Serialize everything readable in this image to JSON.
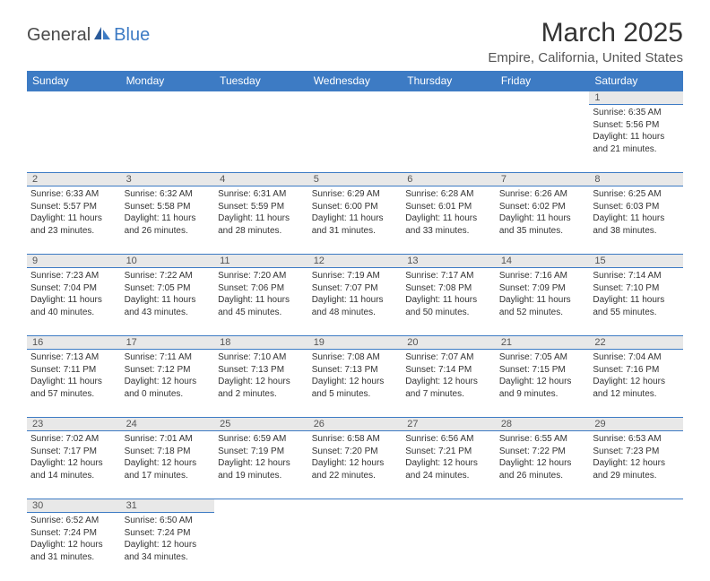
{
  "logo": {
    "general": "General",
    "blue": "Blue"
  },
  "title": "March 2025",
  "location": "Empire, California, United States",
  "header_bg": "#3d7bc4",
  "daynum_bg": "#e8e8e8",
  "border_color": "#3d7bc4",
  "days": [
    "Sunday",
    "Monday",
    "Tuesday",
    "Wednesday",
    "Thursday",
    "Friday",
    "Saturday"
  ],
  "weeks": [
    [
      null,
      null,
      null,
      null,
      null,
      null,
      {
        "n": "1",
        "sunrise": "6:35 AM",
        "sunset": "5:56 PM",
        "daylight": "11 hours and 21 minutes."
      }
    ],
    [
      {
        "n": "2",
        "sunrise": "6:33 AM",
        "sunset": "5:57 PM",
        "daylight": "11 hours and 23 minutes."
      },
      {
        "n": "3",
        "sunrise": "6:32 AM",
        "sunset": "5:58 PM",
        "daylight": "11 hours and 26 minutes."
      },
      {
        "n": "4",
        "sunrise": "6:31 AM",
        "sunset": "5:59 PM",
        "daylight": "11 hours and 28 minutes."
      },
      {
        "n": "5",
        "sunrise": "6:29 AM",
        "sunset": "6:00 PM",
        "daylight": "11 hours and 31 minutes."
      },
      {
        "n": "6",
        "sunrise": "6:28 AM",
        "sunset": "6:01 PM",
        "daylight": "11 hours and 33 minutes."
      },
      {
        "n": "7",
        "sunrise": "6:26 AM",
        "sunset": "6:02 PM",
        "daylight": "11 hours and 35 minutes."
      },
      {
        "n": "8",
        "sunrise": "6:25 AM",
        "sunset": "6:03 PM",
        "daylight": "11 hours and 38 minutes."
      }
    ],
    [
      {
        "n": "9",
        "sunrise": "7:23 AM",
        "sunset": "7:04 PM",
        "daylight": "11 hours and 40 minutes."
      },
      {
        "n": "10",
        "sunrise": "7:22 AM",
        "sunset": "7:05 PM",
        "daylight": "11 hours and 43 minutes."
      },
      {
        "n": "11",
        "sunrise": "7:20 AM",
        "sunset": "7:06 PM",
        "daylight": "11 hours and 45 minutes."
      },
      {
        "n": "12",
        "sunrise": "7:19 AM",
        "sunset": "7:07 PM",
        "daylight": "11 hours and 48 minutes."
      },
      {
        "n": "13",
        "sunrise": "7:17 AM",
        "sunset": "7:08 PM",
        "daylight": "11 hours and 50 minutes."
      },
      {
        "n": "14",
        "sunrise": "7:16 AM",
        "sunset": "7:09 PM",
        "daylight": "11 hours and 52 minutes."
      },
      {
        "n": "15",
        "sunrise": "7:14 AM",
        "sunset": "7:10 PM",
        "daylight": "11 hours and 55 minutes."
      }
    ],
    [
      {
        "n": "16",
        "sunrise": "7:13 AM",
        "sunset": "7:11 PM",
        "daylight": "11 hours and 57 minutes."
      },
      {
        "n": "17",
        "sunrise": "7:11 AM",
        "sunset": "7:12 PM",
        "daylight": "12 hours and 0 minutes."
      },
      {
        "n": "18",
        "sunrise": "7:10 AM",
        "sunset": "7:13 PM",
        "daylight": "12 hours and 2 minutes."
      },
      {
        "n": "19",
        "sunrise": "7:08 AM",
        "sunset": "7:13 PM",
        "daylight": "12 hours and 5 minutes."
      },
      {
        "n": "20",
        "sunrise": "7:07 AM",
        "sunset": "7:14 PM",
        "daylight": "12 hours and 7 minutes."
      },
      {
        "n": "21",
        "sunrise": "7:05 AM",
        "sunset": "7:15 PM",
        "daylight": "12 hours and 9 minutes."
      },
      {
        "n": "22",
        "sunrise": "7:04 AM",
        "sunset": "7:16 PM",
        "daylight": "12 hours and 12 minutes."
      }
    ],
    [
      {
        "n": "23",
        "sunrise": "7:02 AM",
        "sunset": "7:17 PM",
        "daylight": "12 hours and 14 minutes."
      },
      {
        "n": "24",
        "sunrise": "7:01 AM",
        "sunset": "7:18 PM",
        "daylight": "12 hours and 17 minutes."
      },
      {
        "n": "25",
        "sunrise": "6:59 AM",
        "sunset": "7:19 PM",
        "daylight": "12 hours and 19 minutes."
      },
      {
        "n": "26",
        "sunrise": "6:58 AM",
        "sunset": "7:20 PM",
        "daylight": "12 hours and 22 minutes."
      },
      {
        "n": "27",
        "sunrise": "6:56 AM",
        "sunset": "7:21 PM",
        "daylight": "12 hours and 24 minutes."
      },
      {
        "n": "28",
        "sunrise": "6:55 AM",
        "sunset": "7:22 PM",
        "daylight": "12 hours and 26 minutes."
      },
      {
        "n": "29",
        "sunrise": "6:53 AM",
        "sunset": "7:23 PM",
        "daylight": "12 hours and 29 minutes."
      }
    ],
    [
      {
        "n": "30",
        "sunrise": "6:52 AM",
        "sunset": "7:24 PM",
        "daylight": "12 hours and 31 minutes."
      },
      {
        "n": "31",
        "sunrise": "6:50 AM",
        "sunset": "7:24 PM",
        "daylight": "12 hours and 34 minutes."
      },
      null,
      null,
      null,
      null,
      null
    ]
  ],
  "labels": {
    "sunrise": "Sunrise:",
    "sunset": "Sunset:",
    "daylight": "Daylight:"
  }
}
